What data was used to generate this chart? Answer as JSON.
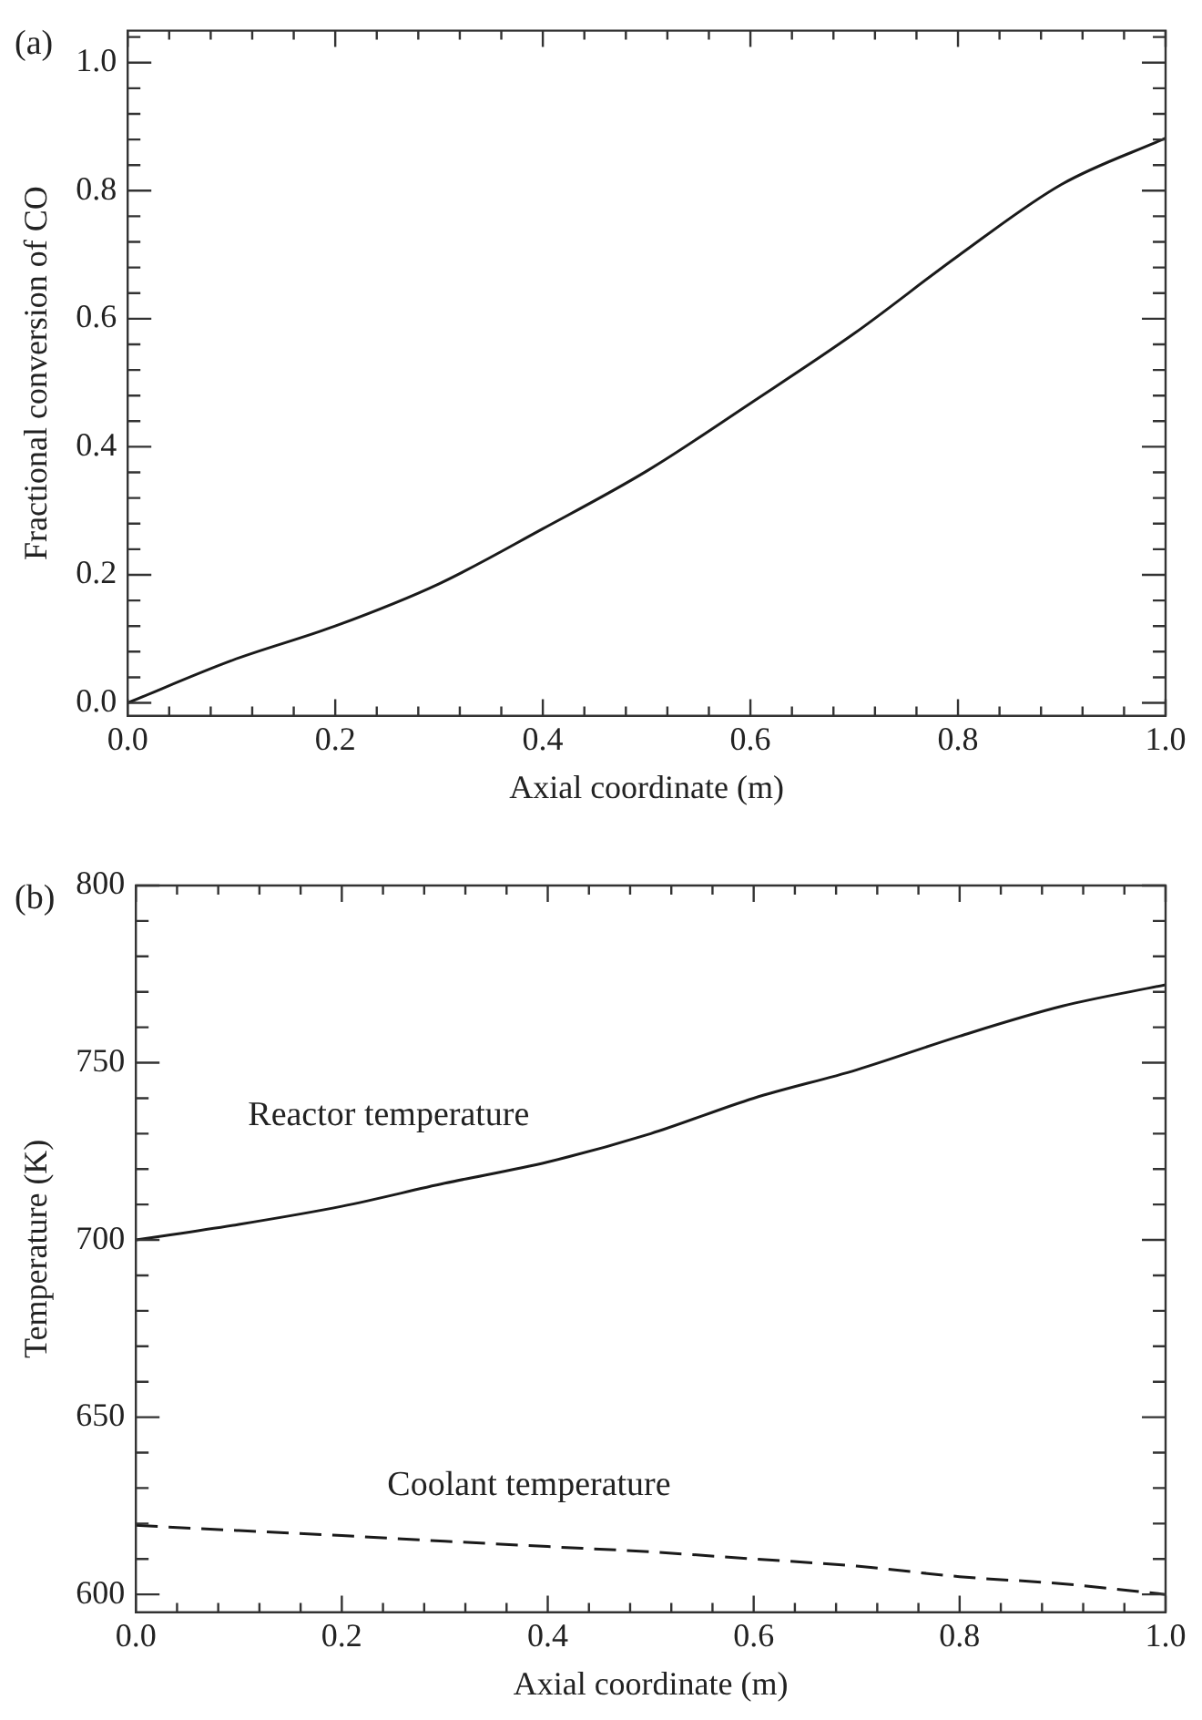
{
  "chart_data": [
    {
      "type": "line",
      "title": "(a)",
      "xlabel": "Axial coordinate (m)",
      "ylabel": "Fractional conversion of CO",
      "x": [
        0,
        0.1,
        0.2,
        0.3,
        0.4,
        0.5,
        0.6,
        0.7,
        0.8,
        0.9,
        1.0
      ],
      "series": [
        {
          "color": "#1a1a1a",
          "values": [
            0,
            0.066,
            0.12,
            0.186,
            0.272,
            0.362,
            0.468,
            0.577,
            0.698,
            0.81,
            0.882
          ]
        }
      ],
      "xlim": [
        0,
        1
      ],
      "ylim": [
        -0.02,
        1.05
      ],
      "xticks": [
        {
          "value": 0,
          "label": "0.0"
        },
        {
          "value": 0.04,
          "label": null
        },
        {
          "value": 0.08,
          "label": null
        },
        {
          "value": 0.12,
          "label": null
        },
        {
          "value": 0.16,
          "label": null
        },
        {
          "value": 0.2,
          "label": "0.2"
        },
        {
          "value": 0.24,
          "label": null
        },
        {
          "value": 0.28,
          "label": null
        },
        {
          "value": 0.32,
          "label": null
        },
        {
          "value": 0.36,
          "label": null
        },
        {
          "value": 0.4,
          "label": "0.4"
        },
        {
          "value": 0.44,
          "label": null
        },
        {
          "value": 0.48,
          "label": null
        },
        {
          "value": 0.52,
          "label": null
        },
        {
          "value": 0.56,
          "label": null
        },
        {
          "value": 0.6,
          "label": "0.6"
        },
        {
          "value": 0.64,
          "label": null
        },
        {
          "value": 0.68,
          "label": null
        },
        {
          "value": 0.72,
          "label": null
        },
        {
          "value": 0.76,
          "label": null
        },
        {
          "value": 0.8,
          "label": "0.8"
        },
        {
          "value": 0.84,
          "label": null
        },
        {
          "value": 0.88,
          "label": null
        },
        {
          "value": 0.92,
          "label": null
        },
        {
          "value": 0.96,
          "label": null
        },
        {
          "value": 1,
          "label": "1.0"
        }
      ],
      "yticks": [
        {
          "value": 0,
          "label": "0.0"
        },
        {
          "value": 0.04,
          "label": null
        },
        {
          "value": 0.08,
          "label": null
        },
        {
          "value": 0.12,
          "label": null
        },
        {
          "value": 0.16,
          "label": null
        },
        {
          "value": 0.2,
          "label": "0.2"
        },
        {
          "value": 0.24,
          "label": null
        },
        {
          "value": 0.28,
          "label": null
        },
        {
          "value": 0.32,
          "label": null
        },
        {
          "value": 0.36,
          "label": null
        },
        {
          "value": 0.4,
          "label": "0.4"
        },
        {
          "value": 0.44,
          "label": null
        },
        {
          "value": 0.48,
          "label": null
        },
        {
          "value": 0.52,
          "label": null
        },
        {
          "value": 0.56,
          "label": null
        },
        {
          "value": 0.6,
          "label": "0.6"
        },
        {
          "value": 0.64,
          "label": null
        },
        {
          "value": 0.68,
          "label": null
        },
        {
          "value": 0.72,
          "label": null
        },
        {
          "value": 0.76,
          "label": null
        },
        {
          "value": 0.8,
          "label": "0.8"
        },
        {
          "value": 0.84,
          "label": null
        },
        {
          "value": 0.88,
          "label": null
        },
        {
          "value": 0.92,
          "label": null
        },
        {
          "value": 0.96,
          "label": null
        },
        {
          "value": 1,
          "label": "1.0"
        },
        {
          "value": 1.04,
          "label": null
        }
      ],
      "grid": false,
      "legend": false,
      "marker": "none"
    },
    {
      "type": "line",
      "title": "(b)",
      "xlabel": "Axial coordinate (m)",
      "ylabel": "Temperature (K)",
      "x": [
        0,
        0.1,
        0.2,
        0.3,
        0.4,
        0.5,
        0.6,
        0.7,
        0.8,
        0.9,
        1.0
      ],
      "series": [
        {
          "name": "Reactor temperature",
          "color": "#1a1a1a",
          "line_style": "solid",
          "values": [
            700,
            704.4,
            709.5,
            716,
            722,
            730,
            740,
            748,
            757.5,
            766,
            772
          ]
        },
        {
          "name": "Coolant temperature",
          "color": "#1a1a1a",
          "line_style": "dashed",
          "values": [
            619.5,
            618,
            616.6,
            615,
            613.5,
            612,
            610,
            608,
            605,
            603,
            600
          ]
        }
      ],
      "xlim": [
        0,
        1
      ],
      "ylim": [
        595,
        800
      ],
      "xticks": [
        {
          "value": 0,
          "label": "0.0"
        },
        {
          "value": 0.04,
          "label": null
        },
        {
          "value": 0.08,
          "label": null
        },
        {
          "value": 0.12,
          "label": null
        },
        {
          "value": 0.16,
          "label": null
        },
        {
          "value": 0.2,
          "label": "0.2"
        },
        {
          "value": 0.24,
          "label": null
        },
        {
          "value": 0.28,
          "label": null
        },
        {
          "value": 0.32,
          "label": null
        },
        {
          "value": 0.36,
          "label": null
        },
        {
          "value": 0.4,
          "label": "0.4"
        },
        {
          "value": 0.44,
          "label": null
        },
        {
          "value": 0.48,
          "label": null
        },
        {
          "value": 0.52,
          "label": null
        },
        {
          "value": 0.56,
          "label": null
        },
        {
          "value": 0.6,
          "label": "0.6"
        },
        {
          "value": 0.64,
          "label": null
        },
        {
          "value": 0.68,
          "label": null
        },
        {
          "value": 0.72,
          "label": null
        },
        {
          "value": 0.76,
          "label": null
        },
        {
          "value": 0.8,
          "label": "0.8"
        },
        {
          "value": 0.84,
          "label": null
        },
        {
          "value": 0.88,
          "label": null
        },
        {
          "value": 0.92,
          "label": null
        },
        {
          "value": 0.96,
          "label": null
        },
        {
          "value": 1,
          "label": "1.0"
        }
      ],
      "yticks": [
        600,
        {
          "value": 610,
          "label": null
        },
        {
          "value": 620,
          "label": null
        },
        {
          "value": 630,
          "label": null
        },
        {
          "value": 640,
          "label": null
        },
        650,
        {
          "value": 660,
          "label": null
        },
        {
          "value": 670,
          "label": null
        },
        {
          "value": 680,
          "label": null
        },
        {
          "value": 690,
          "label": null
        },
        700,
        {
          "value": 710,
          "label": null
        },
        {
          "value": 720,
          "label": null
        },
        {
          "value": 730,
          "label": null
        },
        {
          "value": 740,
          "label": null
        },
        750,
        {
          "value": 760,
          "label": null
        },
        {
          "value": 770,
          "label": null
        },
        {
          "value": 780,
          "label": null
        },
        {
          "value": 790,
          "label": null
        },
        800
      ],
      "grid": false,
      "legend": false,
      "marker": "none"
    }
  ]
}
